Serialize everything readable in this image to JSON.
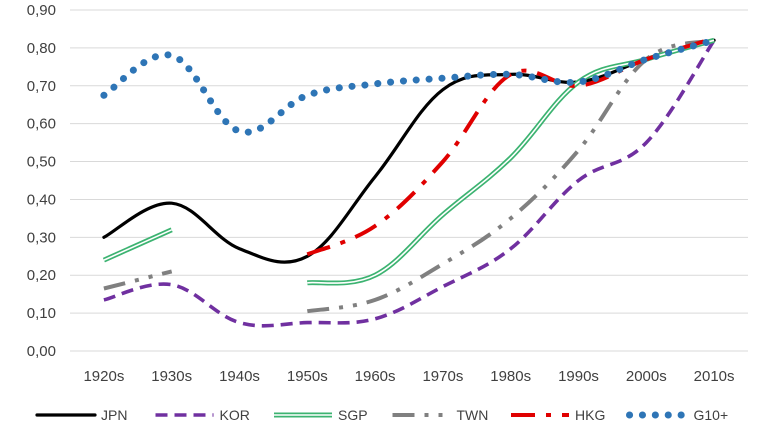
{
  "chart_data": {
    "type": "line",
    "title": "",
    "xlabel": "",
    "ylabel": "",
    "categories": [
      "1920s",
      "1930s",
      "1940s",
      "1950s",
      "1960s",
      "1970s",
      "1980s",
      "1990s",
      "2000s",
      "2010s"
    ],
    "y_tick_labels": [
      "0,00",
      "0,10",
      "0,20",
      "0,30",
      "0,40",
      "0,50",
      "0,60",
      "0,70",
      "0,80",
      "0,90"
    ],
    "ylim": [
      0,
      0.9
    ],
    "grid": "horizontal",
    "legend_position": "bottom",
    "series": [
      {
        "name": "JPN",
        "color": "#000000",
        "style": "solid",
        "values": [
          0.3,
          0.39,
          0.27,
          0.25,
          0.46,
          0.69,
          0.73,
          0.71,
          0.77,
          0.82
        ]
      },
      {
        "name": "KOR",
        "color": "#7030A0",
        "style": "dash",
        "values": [
          0.135,
          0.175,
          0.075,
          0.075,
          0.085,
          0.17,
          0.27,
          0.45,
          0.55,
          0.82
        ]
      },
      {
        "name": "SGP",
        "color": "#3CB371",
        "style": "double",
        "values": [
          0.24,
          0.32,
          null,
          0.18,
          0.2,
          0.36,
          0.51,
          0.71,
          0.77,
          0.82
        ]
      },
      {
        "name": "TWN",
        "color": "#808080",
        "style": "dashdotdot",
        "values": [
          0.165,
          0.21,
          null,
          0.105,
          0.135,
          0.23,
          0.35,
          0.53,
          0.77,
          0.82
        ]
      },
      {
        "name": "HKG",
        "color": "#E00000",
        "style": "dashdot",
        "values": [
          null,
          null,
          null,
          0.255,
          0.33,
          0.5,
          0.73,
          0.7,
          0.77,
          0.825
        ]
      },
      {
        "name": "G10+",
        "color": "#2E75B6",
        "style": "dotted",
        "values": [
          0.675,
          0.78,
          0.58,
          0.675,
          0.705,
          0.72,
          0.73,
          0.71,
          0.77,
          0.82
        ]
      }
    ]
  }
}
